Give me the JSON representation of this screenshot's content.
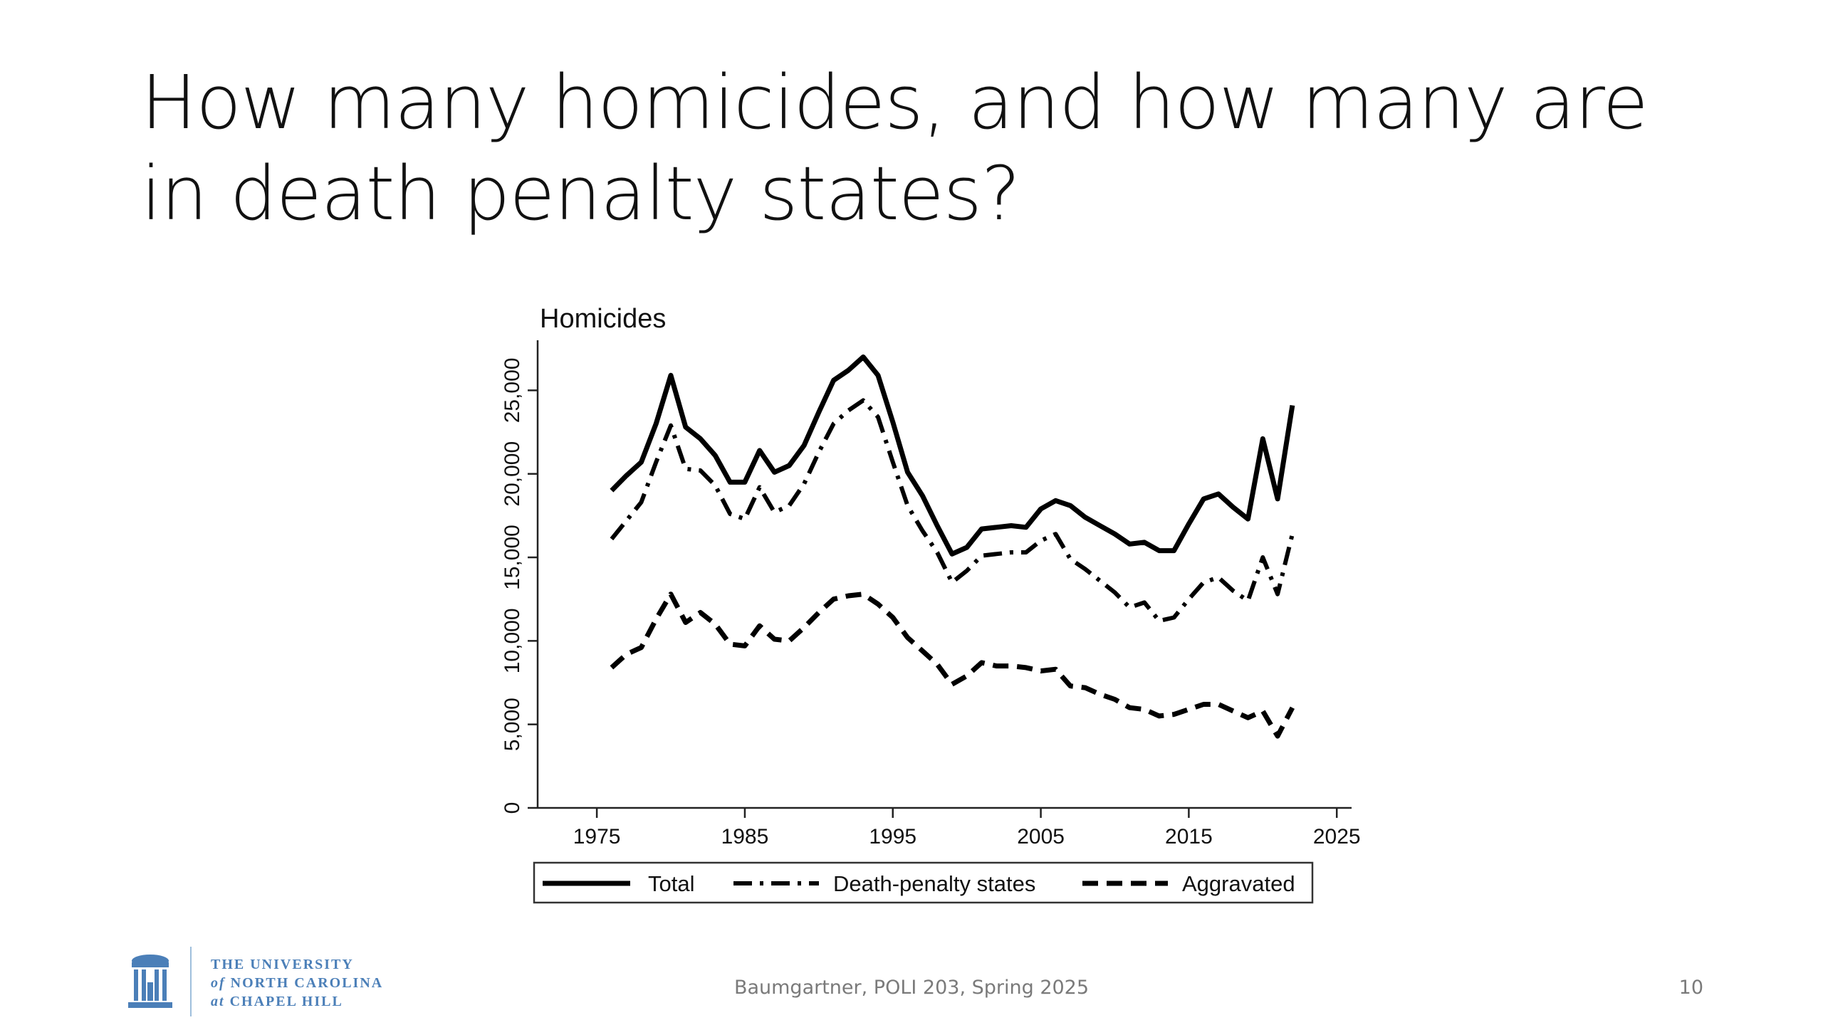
{
  "slide": {
    "title": "How many homicides, and how many are in death penalty states?",
    "footer": "Baumgartner, POLI 203, Spring 2025",
    "page_number": "10",
    "logo": {
      "line1": "THE UNIVERSITY",
      "line2_prefix": "of",
      "line2": "NORTH CAROLINA",
      "line3_prefix": "at",
      "line3": "CHAPEL HILL",
      "color": "#4b7fb8"
    }
  },
  "chart_data": {
    "type": "line",
    "title": "Homicides",
    "xlabel": "",
    "ylabel": "",
    "xlim": [
      1971,
      2026
    ],
    "ylim": [
      0,
      28000
    ],
    "x_ticks": [
      1975,
      1985,
      1995,
      2005,
      2015,
      2025
    ],
    "y_ticks": [
      0,
      5000,
      10000,
      15000,
      20000,
      25000
    ],
    "y_tick_labels": [
      "0",
      "5,000",
      "10,000",
      "15,000",
      "20,000",
      "25,000"
    ],
    "grid": false,
    "legend_position": "bottom",
    "x": [
      1976,
      1977,
      1978,
      1979,
      1980,
      1981,
      1982,
      1983,
      1984,
      1985,
      1986,
      1987,
      1988,
      1989,
      1990,
      1991,
      1992,
      1993,
      1994,
      1995,
      1996,
      1997,
      1998,
      1999,
      2000,
      2001,
      2002,
      2003,
      2004,
      2005,
      2006,
      2007,
      2008,
      2009,
      2010,
      2011,
      2012,
      2013,
      2014,
      2015,
      2016,
      2017,
      2018,
      2019,
      2020,
      2021,
      2022
    ],
    "series": [
      {
        "name": "Total",
        "style": "solid",
        "values": [
          19000,
          19900,
          20700,
          23000,
          25900,
          22800,
          22100,
          21100,
          19500,
          19500,
          21400,
          20100,
          20500,
          21700,
          23700,
          25600,
          26200,
          27000,
          25900,
          23100,
          20100,
          18700,
          16900,
          15200,
          15600,
          16700,
          16800,
          16900,
          16800,
          17900,
          18400,
          18100,
          17400,
          16900,
          16400,
          15800,
          15900,
          15400,
          15400,
          17000,
          18500,
          18800,
          18000,
          17300,
          22100,
          18500,
          24100
        ]
      },
      {
        "name": "Death-penalty states",
        "style": "dashdot",
        "values": [
          16100,
          17200,
          18300,
          20700,
          22900,
          20300,
          20200,
          19300,
          17600,
          17300,
          19200,
          17700,
          18100,
          19400,
          21300,
          23000,
          23800,
          24400,
          23400,
          20700,
          18100,
          16600,
          15300,
          13500,
          14200,
          15100,
          15200,
          15300,
          15300,
          16000,
          16400,
          14900,
          14300,
          13600,
          12900,
          12000,
          12300,
          11200,
          11400,
          12500,
          13500,
          13800,
          13000,
          12400,
          15000,
          12800,
          16400
        ]
      },
      {
        "name": "Aggravated",
        "style": "dashed",
        "values": [
          8400,
          9200,
          9600,
          11300,
          12800,
          11100,
          11700,
          11000,
          9800,
          9700,
          10900,
          10100,
          10000,
          10800,
          11700,
          12500,
          12700,
          12800,
          12200,
          11400,
          10200,
          9400,
          8600,
          7400,
          7900,
          8700,
          8500,
          8500,
          8400,
          8200,
          8300,
          7300,
          7200,
          6800,
          6500,
          6000,
          5900,
          5500,
          5600,
          5900,
          6200,
          6200,
          5800,
          5400,
          5800,
          4300,
          6000
        ]
      }
    ]
  }
}
